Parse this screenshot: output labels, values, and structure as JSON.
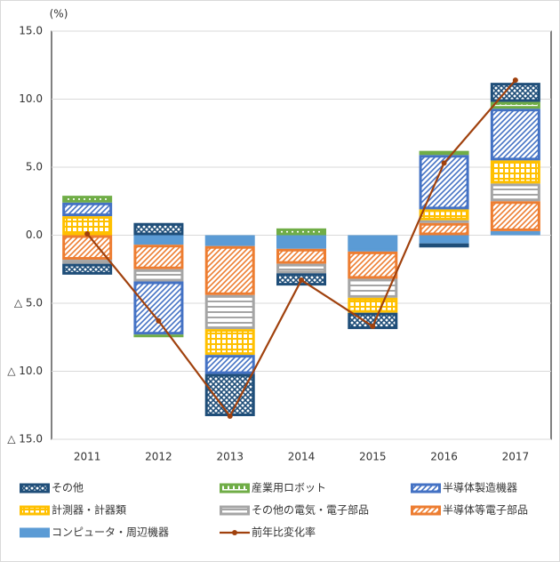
{
  "chart_data": {
    "type": "bar",
    "ylabel": "(%)",
    "categories": [
      "2011",
      "2012",
      "2013",
      "2014",
      "2015",
      "2016",
      "2017"
    ],
    "ylim": [
      -15,
      15
    ],
    "yticks": [
      {
        "value": -15,
        "label": "△ 15.0"
      },
      {
        "value": -10,
        "label": "△ 10.0"
      },
      {
        "value": -5,
        "label": "△ 5.0"
      },
      {
        "value": 0,
        "label": "0.0"
      },
      {
        "value": 5,
        "label": "5.0"
      },
      {
        "value": 10,
        "label": "10.0"
      },
      {
        "value": 15,
        "label": "15.0"
      }
    ],
    "grid": true,
    "series": [
      {
        "name": "その他",
        "color": "#1f4e79",
        "values": [
          -0.8,
          0.9,
          -3.1,
          -0.9,
          -1.2,
          -0.3,
          1.4
        ]
      },
      {
        "name": "産業用ロボット",
        "color": "#70ad47",
        "values": [
          0.5,
          -0.2,
          0,
          0.5,
          0,
          0.3,
          0.5
        ]
      },
      {
        "name": "半導体製造機器",
        "color": "#4472c4",
        "values": [
          1.0,
          -3.9,
          -1.4,
          0,
          0,
          4.0,
          3.8
        ]
      },
      {
        "name": "計測器・計器類",
        "color": "#ffc000",
        "values": [
          1.4,
          0,
          -1.9,
          0,
          -1.1,
          0.8,
          1.7
        ]
      },
      {
        "name": "その他の電気・電子部品",
        "color": "#a5a5a5",
        "values": [
          -0.3,
          -0.9,
          -2.5,
          -0.7,
          -1.4,
          0.2,
          1.3
        ]
      },
      {
        "name": "半導体等電子部品",
        "color": "#ed7d31",
        "values": [
          -1.8,
          -1.8,
          -3.6,
          -1.1,
          -2.0,
          0.9,
          2.2
        ]
      },
      {
        "name": "コンピュータ・周辺機器",
        "color": "#5b9bd5",
        "values": [
          0,
          -0.7,
          -0.8,
          -1.0,
          -1.2,
          -0.6,
          0.3
        ]
      },
      {
        "name": "前年比変化率",
        "type": "line",
        "color": "#a0410d",
        "values": [
          0.1,
          -6.3,
          -13.3,
          -3.3,
          -6.7,
          5.3,
          11.4
        ]
      }
    ]
  }
}
